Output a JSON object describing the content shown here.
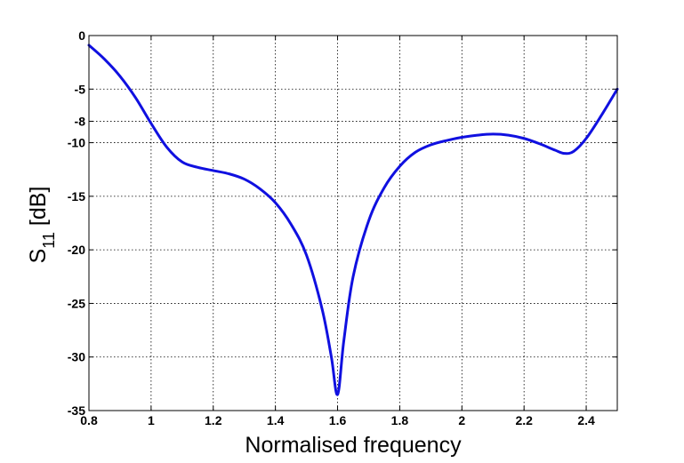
{
  "chart_data": {
    "type": "line",
    "title": "",
    "xlabel": "Normalised frequency",
    "ylabel": {
      "main": "S",
      "subscript": "11",
      "unit": " [dB]"
    },
    "xlim": [
      0.8,
      2.5
    ],
    "ylim": [
      -35,
      0
    ],
    "xticks": [
      "0.8",
      "1",
      "1.2",
      "1.4",
      "1.6",
      "1.8",
      "2",
      "2.2",
      "2.4"
    ],
    "yticks": [
      "0",
      "-5",
      "-8",
      "-10",
      "-15",
      "-20",
      "-25",
      "-30",
      "-35"
    ],
    "grid": true,
    "legend": "none",
    "series": [
      {
        "color": "#1010e0",
        "x": [
          0.8,
          0.85,
          0.9,
          0.95,
          1.0,
          1.05,
          1.1,
          1.15,
          1.2,
          1.25,
          1.3,
          1.35,
          1.4,
          1.45,
          1.5,
          1.55,
          1.58,
          1.6,
          1.62,
          1.65,
          1.7,
          1.75,
          1.8,
          1.85,
          1.9,
          1.95,
          2.0,
          2.05,
          2.1,
          2.15,
          2.2,
          2.25,
          2.3,
          2.33,
          2.36,
          2.4,
          2.45,
          2.5
        ],
        "y": [
          -0.9,
          -2.2,
          -3.8,
          -5.8,
          -8.2,
          -10.4,
          -11.8,
          -12.3,
          -12.6,
          -12.9,
          -13.4,
          -14.3,
          -15.6,
          -17.6,
          -20.5,
          -25.5,
          -30.0,
          -33.5,
          -28.5,
          -22.5,
          -17.3,
          -14.2,
          -12.2,
          -10.9,
          -10.2,
          -9.8,
          -9.5,
          -9.3,
          -9.2,
          -9.3,
          -9.6,
          -10.1,
          -10.7,
          -11.0,
          -10.8,
          -9.6,
          -7.4,
          -5.0
        ]
      }
    ]
  }
}
